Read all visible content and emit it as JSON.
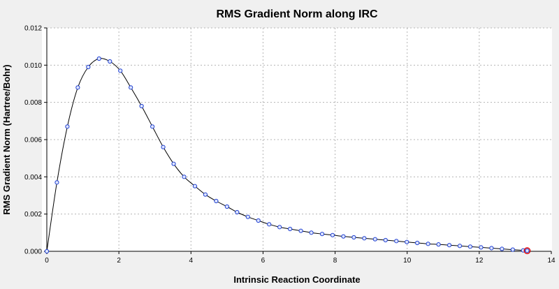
{
  "chart_data": {
    "type": "line",
    "title": "RMS Gradient Norm along IRC",
    "xlabel": "Intrinsic Reaction Coordinate",
    "ylabel": "RMS Gradient Norm (Hartree/Bohr)",
    "xlim": [
      0,
      14
    ],
    "ylim": [
      0,
      0.012
    ],
    "xticks": [
      "0",
      "2",
      "4",
      "6",
      "8",
      "10",
      "12",
      "14"
    ],
    "yticks": [
      "0.000",
      "0.002",
      "0.004",
      "0.006",
      "0.008",
      "0.010",
      "0.012"
    ],
    "grid": true,
    "legend": "none",
    "colors": {
      "line": "#000000",
      "marker_edge": "#2040d0",
      "marker_fill": "#dfe6ff",
      "highlight": "#e00000",
      "plot_background": "#ffffff",
      "window_background": "#f0f0f0"
    },
    "series": [
      {
        "marker": "circle",
        "x": [
          0.0,
          0.28,
          0.57,
          0.86,
          1.15,
          1.45,
          1.75,
          2.04,
          2.33,
          2.63,
          2.93,
          3.23,
          3.52,
          3.81,
          4.11,
          4.4,
          4.7,
          5.0,
          5.28,
          5.58,
          5.87,
          6.17,
          6.46,
          6.75,
          7.05,
          7.34,
          7.64,
          7.93,
          8.23,
          8.52,
          8.81,
          9.11,
          9.4,
          9.7,
          9.99,
          10.28,
          10.58,
          10.87,
          11.17,
          11.46,
          11.75,
          12.05,
          12.34,
          12.63,
          12.93,
          13.22,
          13.33
        ],
        "y": [
          0.0,
          0.0037,
          0.0067,
          0.0088,
          0.0099,
          0.01035,
          0.0102,
          0.0097,
          0.0088,
          0.0078,
          0.0067,
          0.0056,
          0.0047,
          0.004,
          0.0035,
          0.00305,
          0.0027,
          0.0024,
          0.0021,
          0.00185,
          0.00165,
          0.00145,
          0.0013,
          0.0012,
          0.0011,
          0.001,
          0.00093,
          0.00087,
          0.0008,
          0.00075,
          0.0007,
          0.00065,
          0.0006,
          0.00055,
          0.0005,
          0.00045,
          0.0004,
          0.00037,
          0.00033,
          0.00029,
          0.00025,
          0.00021,
          0.00017,
          0.00013,
          9e-05,
          5e-05,
          3e-05
        ]
      }
    ],
    "highlighted_point_index": 46
  }
}
